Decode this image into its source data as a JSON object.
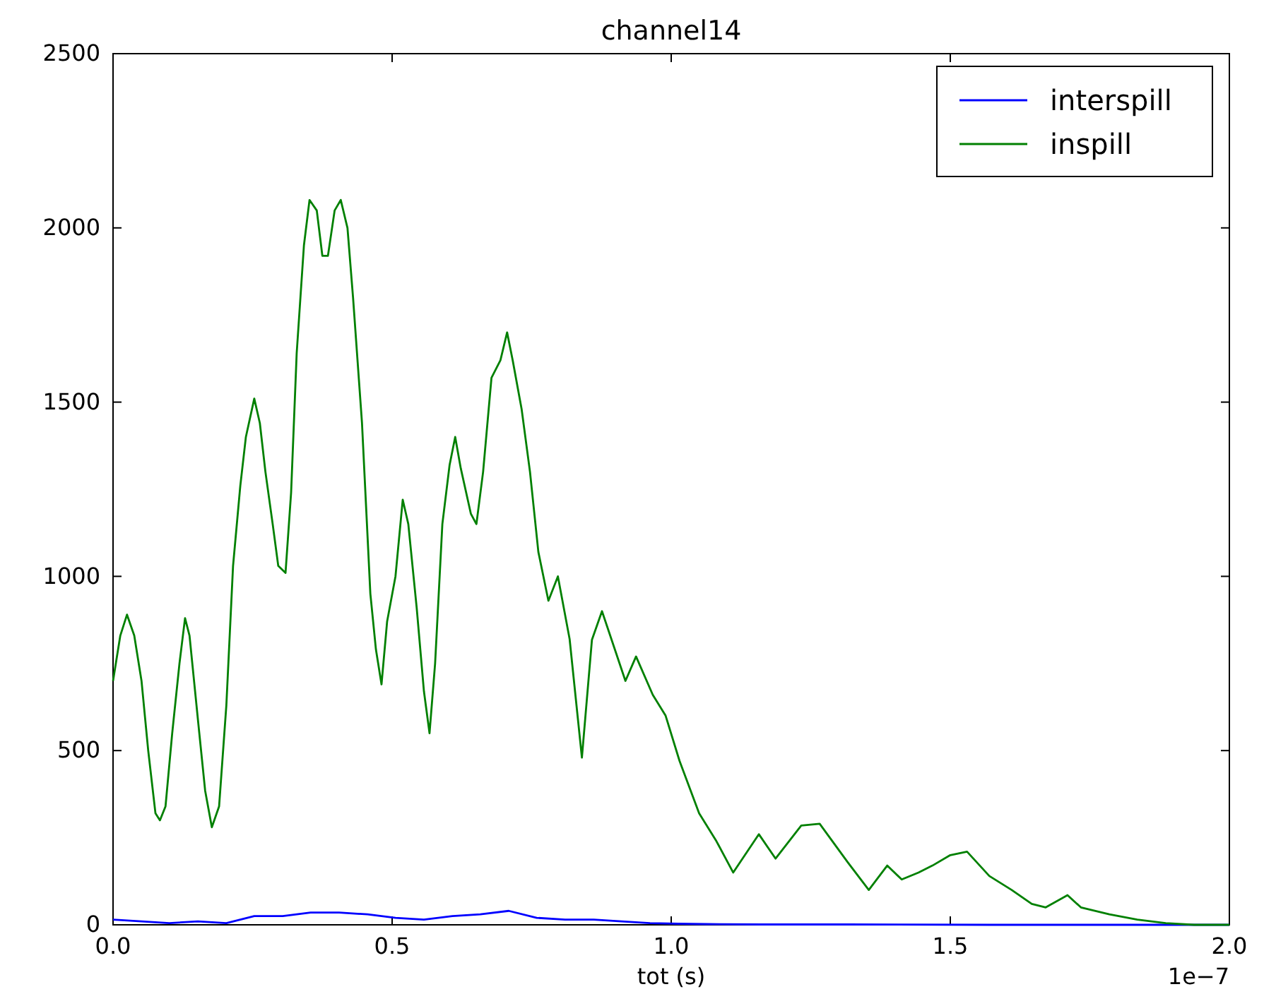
{
  "chart_data": {
    "type": "line",
    "title": "channel14",
    "xlabel": "tot (s)",
    "annotations": [
      "1e−7"
    ],
    "xlim": [
      0,
      2.0
    ],
    "xticks": [
      {
        "value": 0,
        "label": "0.0"
      },
      0.5,
      {
        "value": 1,
        "label": "1.0"
      },
      1.5,
      {
        "value": 2,
        "label": "2.0"
      }
    ],
    "ylim": [
      0,
      2500
    ],
    "yticks": [
      0,
      500,
      1000,
      1500,
      2000,
      2500
    ],
    "grid": false,
    "legend": "top right",
    "marker": "none",
    "line_style": "solid",
    "series": [
      {
        "name": "interspill",
        "color": "#0000ff",
        "x": [
          0,
          0.051,
          0.101,
          0.152,
          0.203,
          0.253,
          0.304,
          0.354,
          0.405,
          0.456,
          0.506,
          0.557,
          0.608,
          0.658,
          0.709,
          0.759,
          0.81,
          0.861,
          0.911,
          0.962,
          1.013,
          1.063,
          1.165,
          1.316,
          1.57,
          2.0
        ],
        "values": [
          15,
          10,
          5,
          10,
          5,
          25,
          25,
          35,
          35,
          30,
          20,
          15,
          25,
          30,
          40,
          20,
          15,
          15,
          10,
          5,
          3,
          2,
          1,
          1,
          0,
          0
        ]
      },
      {
        "name": "inspill",
        "color": "#008000",
        "x": [
          0,
          0.013,
          0.025,
          0.038,
          0.051,
          0.063,
          0.076,
          0.084,
          0.094,
          0.106,
          0.119,
          0.129,
          0.137,
          0.152,
          0.165,
          0.177,
          0.19,
          0.203,
          0.215,
          0.228,
          0.238,
          0.253,
          0.263,
          0.273,
          0.286,
          0.296,
          0.309,
          0.319,
          0.329,
          0.342,
          0.352,
          0.365,
          0.375,
          0.385,
          0.397,
          0.408,
          0.42,
          0.43,
          0.446,
          0.461,
          0.471,
          0.481,
          0.491,
          0.506,
          0.519,
          0.529,
          0.544,
          0.557,
          0.567,
          0.577,
          0.59,
          0.603,
          0.613,
          0.623,
          0.641,
          0.651,
          0.663,
          0.678,
          0.694,
          0.706,
          0.716,
          0.732,
          0.747,
          0.762,
          0.78,
          0.797,
          0.818,
          0.84,
          0.858,
          0.876,
          0.918,
          0.937,
          0.967,
          0.99,
          1.015,
          1.05,
          1.081,
          1.111,
          1.157,
          1.187,
          1.233,
          1.266,
          1.316,
          1.354,
          1.387,
          1.413,
          1.443,
          1.468,
          1.5,
          1.53,
          1.57,
          1.61,
          1.646,
          1.671,
          1.71,
          1.734,
          1.785,
          1.835,
          1.886,
          1.937,
          2.0
        ],
        "values": [
          700,
          830,
          890,
          830,
          700,
          500,
          320,
          300,
          340,
          550,
          750,
          880,
          830,
          590,
          385,
          280,
          340,
          630,
          1030,
          1260,
          1400,
          1510,
          1440,
          1300,
          1150,
          1030,
          1010,
          1240,
          1640,
          1950,
          2080,
          2050,
          1920,
          1920,
          2050,
          2080,
          2000,
          1800,
          1440,
          950,
          790,
          690,
          870,
          1000,
          1220,
          1150,
          910,
          670,
          550,
          750,
          1150,
          1320,
          1400,
          1310,
          1180,
          1150,
          1300,
          1570,
          1620,
          1700,
          1620,
          1480,
          1300,
          1070,
          930,
          1000,
          820,
          480,
          818,
          900,
          700,
          770,
          660,
          600,
          470,
          320,
          240,
          150,
          260,
          190,
          285,
          290,
          180,
          100,
          170,
          130,
          150,
          170,
          200,
          210,
          140,
          100,
          60,
          50,
          85,
          50,
          30,
          15,
          5,
          0,
          0
        ]
      }
    ]
  }
}
